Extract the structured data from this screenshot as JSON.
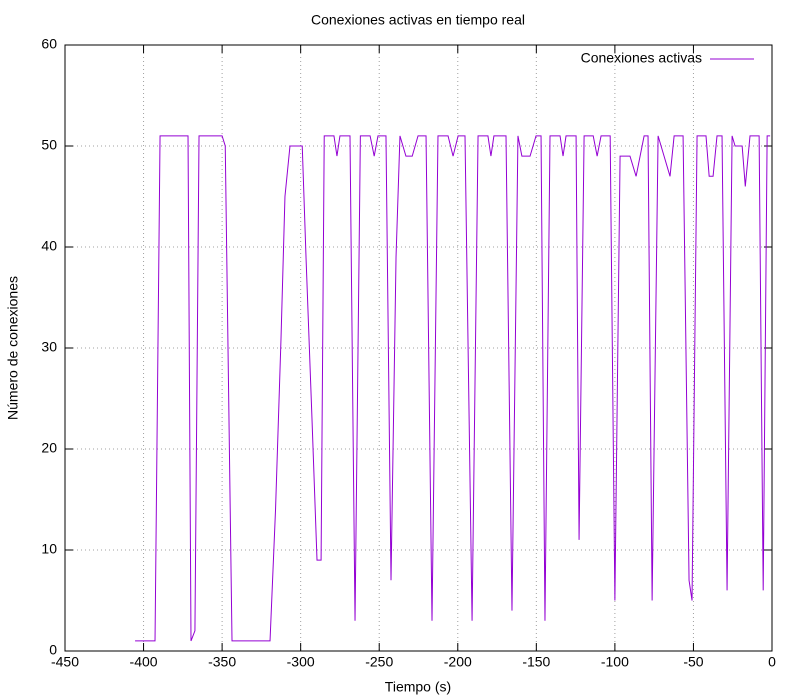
{
  "chart_data": {
    "type": "line",
    "title": "Conexiones activas en tiempo real",
    "x_label": "Tiempo (s)",
    "y_label": "Número de conexiones",
    "xlim": [
      -450,
      0
    ],
    "ylim": [
      0,
      60
    ],
    "xticks": [
      -450,
      -400,
      -350,
      -300,
      -250,
      -200,
      -150,
      -100,
      -50,
      0
    ],
    "yticks": [
      0,
      10,
      20,
      30,
      40,
      50,
      60
    ],
    "grid": true,
    "legend": "top-right",
    "series": [
      {
        "name": "Conexiones activas",
        "color": "#9400d3",
        "x": [
          -405.4,
          -392.7,
          -389.5,
          -371.7,
          -369.8,
          -367.3,
          -364.7,
          -350,
          -348,
          -343.7,
          -319.5,
          -316,
          -312.5,
          -310,
          -306.8,
          -299,
          -296.6,
          -292.8,
          -289.6,
          -287,
          -285,
          -278.8,
          -276.9,
          -275,
          -268.6,
          -265.4,
          -262,
          -255.8,
          -253.2,
          -250.8,
          -245.7,
          -242.5,
          -239.3,
          -236.8,
          -233,
          -229,
          -225.3,
          -220.2,
          -216.4,
          -212.6,
          -206.2,
          -203,
          -199.8,
          -195.4,
          -190.9,
          -187.1,
          -180.8,
          -178.9,
          -177,
          -169.3,
          -165.5,
          -161.7,
          -159.2,
          -154,
          -150.2,
          -147,
          -144.5,
          -141.3,
          -134.9,
          -133,
          -131.1,
          -124.7,
          -122.8,
          -119.6,
          -113.8,
          -111.3,
          -108.8,
          -103,
          -100,
          -96.7,
          -90.4,
          -86.5,
          -81.4,
          -78.9,
          -76.3,
          -72.5,
          -68.7,
          -64.9,
          -62.3,
          -56.6,
          -52.8,
          -50.9,
          -47.7,
          -42,
          -40,
          -37.5,
          -35,
          -31.8,
          -28.6,
          -25.4,
          -23.5,
          -19,
          -17,
          -14,
          -8.2,
          -5.6,
          -3.1,
          -1.2
        ],
        "values": [
          1,
          1,
          51,
          51,
          1,
          2,
          51,
          51,
          50,
          1,
          1,
          14,
          31,
          45,
          50,
          50,
          39,
          23,
          9,
          9,
          51,
          51,
          49,
          51,
          51,
          3,
          51,
          51,
          49,
          51,
          51,
          7,
          39,
          51,
          49,
          49,
          51,
          51,
          3,
          51,
          51,
          49,
          51,
          51,
          3,
          51,
          51,
          49,
          51,
          51,
          4,
          51,
          49,
          49,
          51,
          51,
          3,
          51,
          51,
          49,
          51,
          51,
          11,
          51,
          51,
          49,
          51,
          51,
          5,
          49,
          49,
          47,
          51,
          51,
          5,
          51,
          49,
          47,
          51,
          51,
          7,
          5,
          51,
          51,
          47,
          47,
          51,
          51,
          6,
          51,
          50,
          50,
          46,
          51,
          51,
          6,
          51,
          51
        ]
      }
    ]
  }
}
